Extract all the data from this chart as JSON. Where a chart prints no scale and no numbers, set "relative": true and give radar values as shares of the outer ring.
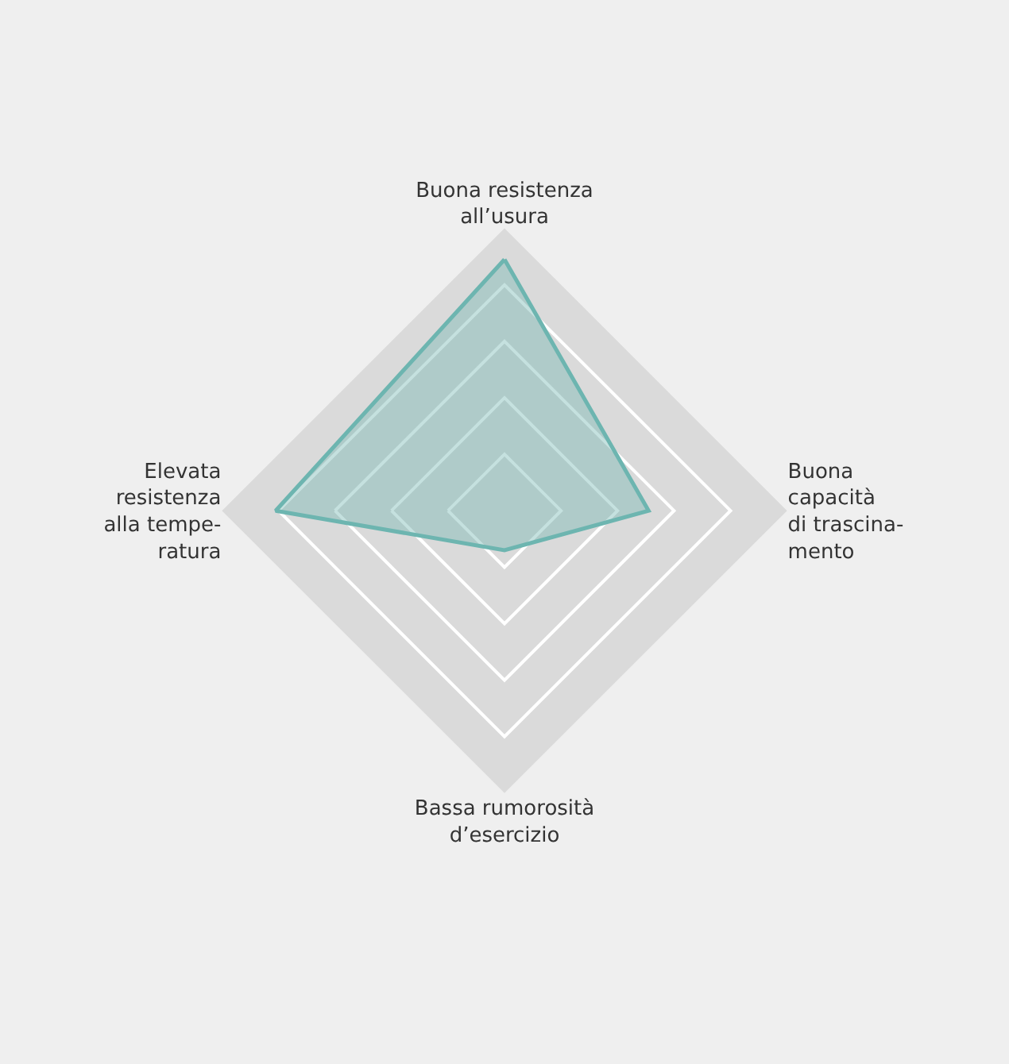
{
  "chart_data": {
    "type": "radar",
    "relative": true,
    "categories": [
      "Buona resistenza\nall’usura",
      "Buona\ncapacità\ndi trascina-\nmento",
      "Bassa rumorosità\nd’esercizio",
      "Elevata\nresistenza\nalla tempe-\nratura"
    ],
    "series": [
      {
        "color": "#6db5b0",
        "values": [
          0.89,
          0.51,
          0.14,
          0.81
        ]
      }
    ],
    "grid": true
  }
}
